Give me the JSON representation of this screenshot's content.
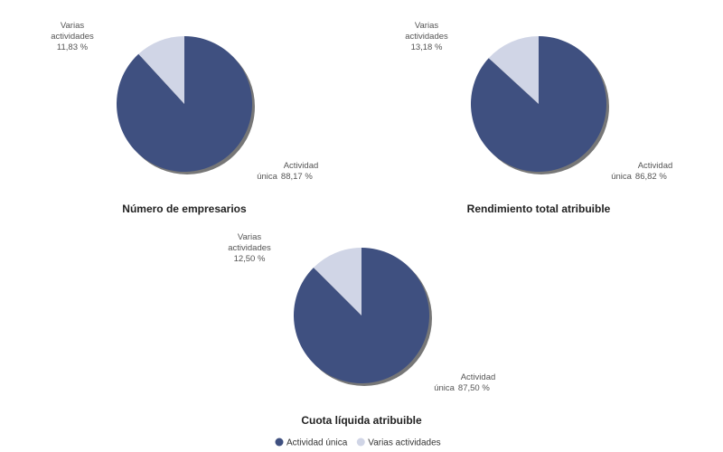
{
  "chart_data": [
    {
      "type": "pie",
      "title": "Número de empresarios",
      "categories": [
        "Actividad única",
        "Varias actividades"
      ],
      "values": [
        88.17,
        11.83
      ],
      "value_labels": [
        "88,17 %",
        "11,83 %"
      ],
      "colors": [
        "#3f5080",
        "#d0d5e6"
      ]
    },
    {
      "type": "pie",
      "title": "Rendimiento total atribuible",
      "categories": [
        "Actividad única",
        "Varias actividades"
      ],
      "values": [
        86.82,
        13.18
      ],
      "value_labels": [
        "86,82 %",
        "13,18 %"
      ],
      "colors": [
        "#3f5080",
        "#d0d5e6"
      ]
    },
    {
      "type": "pie",
      "title": "Cuota líquida atribuible",
      "categories": [
        "Actividad única",
        "Varias actividades"
      ],
      "values": [
        87.5,
        12.5
      ],
      "value_labels": [
        "87,50 %",
        "12,50 %"
      ],
      "colors": [
        "#3f5080",
        "#d0d5e6"
      ]
    }
  ]
}
